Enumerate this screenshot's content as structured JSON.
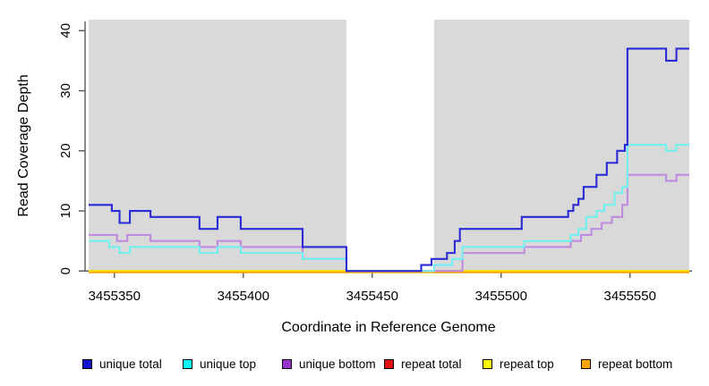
{
  "chart_data": {
    "type": "line",
    "step": true,
    "title": "",
    "xlabel": "Coordinate in Reference Genome",
    "ylabel": "Read Coverage Depth",
    "xlim": [
      3455340,
      3455573
    ],
    "ylim": [
      0,
      40
    ],
    "xticks": [
      3455350,
      3455400,
      3455450,
      3455500,
      3455550
    ],
    "yticks": [
      0,
      10,
      20,
      30,
      40
    ],
    "grid": false,
    "legend_position": "bottom",
    "panel_bg": "#D9D9D9",
    "axis_color": "#555555",
    "excluded_region": {
      "start": 3455440,
      "end": 3455474,
      "color": "#FFFFFF"
    },
    "series": [
      {
        "name": "unique total",
        "legend_color": "#1414CC",
        "line_color": "#2A2AD8",
        "points": [
          [
            3455340,
            11
          ],
          [
            3455349,
            10
          ],
          [
            3455352,
            8
          ],
          [
            3455356,
            10
          ],
          [
            3455364,
            9
          ],
          [
            3455383,
            7
          ],
          [
            3455390,
            9
          ],
          [
            3455399,
            7
          ],
          [
            3455423,
            4
          ],
          [
            3455440,
            0
          ],
          [
            3455469,
            1
          ],
          [
            3455473,
            2
          ],
          [
            3455479,
            3
          ],
          [
            3455482,
            5
          ],
          [
            3455484,
            7
          ],
          [
            3455508,
            9
          ],
          [
            3455526,
            10
          ],
          [
            3455528,
            11
          ],
          [
            3455530,
            12
          ],
          [
            3455532,
            14
          ],
          [
            3455537,
            16
          ],
          [
            3455541,
            18
          ],
          [
            3455545,
            20
          ],
          [
            3455548,
            21
          ],
          [
            3455549,
            37
          ],
          [
            3455564,
            35
          ],
          [
            3455568,
            37
          ],
          [
            3455573,
            37
          ]
        ]
      },
      {
        "name": "unique top",
        "legend_color": "#00FFFF",
        "line_color": "#70F0EE",
        "points": [
          [
            3455340,
            5
          ],
          [
            3455348,
            4
          ],
          [
            3455352,
            3
          ],
          [
            3455356,
            4
          ],
          [
            3455383,
            3
          ],
          [
            3455390,
            4
          ],
          [
            3455399,
            3
          ],
          [
            3455423,
            2
          ],
          [
            3455440,
            0
          ],
          [
            3455474,
            1
          ],
          [
            3455481,
            2
          ],
          [
            3455485,
            4
          ],
          [
            3455509,
            5
          ],
          [
            3455527,
            6
          ],
          [
            3455530,
            7
          ],
          [
            3455533,
            9
          ],
          [
            3455537,
            10
          ],
          [
            3455540,
            11
          ],
          [
            3455544,
            13
          ],
          [
            3455547,
            14
          ],
          [
            3455549,
            21
          ],
          [
            3455564,
            20
          ],
          [
            3455568,
            21
          ],
          [
            3455573,
            21
          ]
        ]
      },
      {
        "name": "unique bottom",
        "legend_color": "#9932CC",
        "line_color": "#BE8BDF",
        "points": [
          [
            3455340,
            6
          ],
          [
            3455351,
            5
          ],
          [
            3455355,
            6
          ],
          [
            3455364,
            5
          ],
          [
            3455383,
            4
          ],
          [
            3455390,
            5
          ],
          [
            3455399,
            4
          ],
          [
            3455423,
            2
          ],
          [
            3455440,
            0
          ],
          [
            3455485,
            3
          ],
          [
            3455509,
            4
          ],
          [
            3455527,
            5
          ],
          [
            3455531,
            6
          ],
          [
            3455535,
            7
          ],
          [
            3455539,
            8
          ],
          [
            3455543,
            9
          ],
          [
            3455547,
            11
          ],
          [
            3455549,
            16
          ],
          [
            3455564,
            15
          ],
          [
            3455568,
            16
          ],
          [
            3455573,
            16
          ]
        ]
      },
      {
        "name": "repeat total",
        "legend_color": "#E31212",
        "line_color": "#E31212",
        "points": [
          [
            3455340,
            0
          ],
          [
            3455573,
            0
          ]
        ]
      },
      {
        "name": "repeat top",
        "legend_color": "#FFFF00",
        "line_color": "#FFFF00",
        "points": [
          [
            3455340,
            0
          ],
          [
            3455573,
            0
          ]
        ]
      },
      {
        "name": "repeat bottom",
        "legend_color": "#FFA500",
        "line_color": "#FFA500",
        "points": [
          [
            3455340,
            0
          ],
          [
            3455573,
            0
          ]
        ]
      }
    ]
  },
  "legend": {
    "items": [
      "unique total",
      "unique top",
      "unique bottom",
      "repeat total",
      "repeat top",
      "repeat bottom"
    ]
  }
}
